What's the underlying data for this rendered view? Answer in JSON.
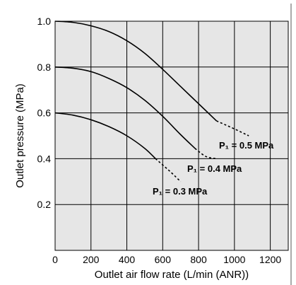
{
  "chart_data": {
    "type": "line",
    "xlabel": "Outlet air flow rate (L/min (ANR))",
    "ylabel": "Outlet pressure (MPa)",
    "xlim": [
      0,
      1300
    ],
    "ylim": [
      0,
      1.0
    ],
    "xticks": [
      "0",
      "200",
      "400",
      "600",
      "800",
      "1000",
      "1200"
    ],
    "yticks": [
      "0.2",
      "0.4",
      "0.6",
      "0.8",
      "1.0"
    ],
    "grid": true,
    "background": "#e6e6e6",
    "series": [
      {
        "label": "P₁ = 0.5 MPa",
        "solid": [
          [
            0,
            1.0
          ],
          [
            100,
            0.995
          ],
          [
            200,
            0.98
          ],
          [
            300,
            0.955
          ],
          [
            400,
            0.915
          ],
          [
            500,
            0.86
          ],
          [
            600,
            0.79
          ],
          [
            700,
            0.715
          ],
          [
            800,
            0.64
          ],
          [
            900,
            0.565
          ]
        ],
        "dashed": [
          [
            900,
            0.565
          ],
          [
            1000,
            0.53
          ],
          [
            1080,
            0.5
          ]
        ]
      },
      {
        "label": "P₁ = 0.4 MPa",
        "solid": [
          [
            0,
            0.8
          ],
          [
            100,
            0.795
          ],
          [
            200,
            0.78
          ],
          [
            300,
            0.75
          ],
          [
            400,
            0.71
          ],
          [
            500,
            0.655
          ],
          [
            600,
            0.585
          ],
          [
            700,
            0.505
          ],
          [
            780,
            0.445
          ]
        ],
        "dashed": [
          [
            780,
            0.445
          ],
          [
            840,
            0.41
          ],
          [
            900,
            0.4
          ]
        ]
      },
      {
        "label": "P₁ = 0.3 MPa",
        "solid": [
          [
            0,
            0.6
          ],
          [
            100,
            0.59
          ],
          [
            200,
            0.57
          ],
          [
            300,
            0.54
          ],
          [
            400,
            0.5
          ],
          [
            500,
            0.445
          ],
          [
            560,
            0.4
          ]
        ],
        "dashed": [
          [
            560,
            0.4
          ],
          [
            640,
            0.345
          ],
          [
            700,
            0.3
          ]
        ]
      }
    ]
  }
}
